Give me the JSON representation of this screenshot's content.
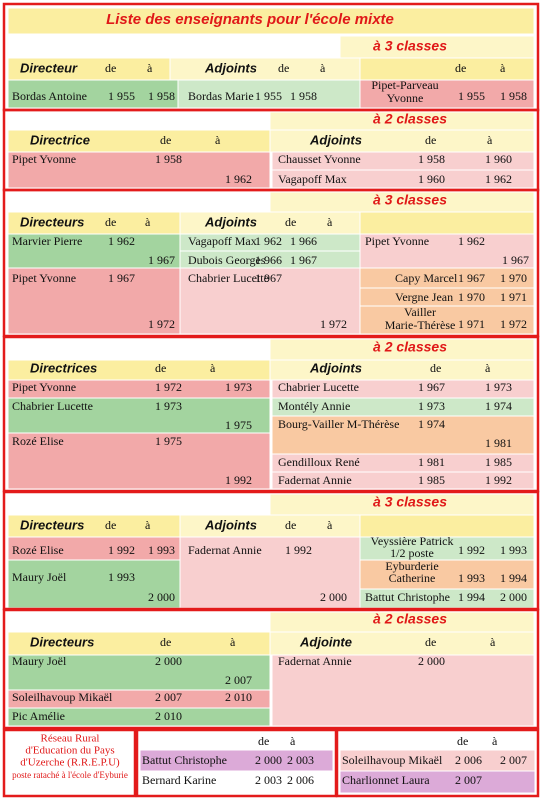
{
  "title": "Liste des enseignants pour l'école mixte",
  "sections": [
    {
      "heading": "à 3 classes",
      "texts": [
        "Directeur",
        "de",
        "à",
        "Adjoints",
        "de",
        "à",
        "de",
        "à",
        "Bordas Antoine",
        "1 955",
        "1 958",
        "Bordas Marie",
        "1 955",
        "1 958",
        "Pipet-Parveau",
        "Yvonne",
        "1 955",
        "1 958"
      ]
    },
    {
      "heading": "à 2 classes",
      "texts": [
        "Directrice",
        "de",
        "à",
        "Adjoints",
        "de",
        "à",
        "Pipet Yvonne",
        "1 958",
        "1 962",
        "Chausset Yvonne",
        "1 958",
        "1 960",
        "Vagapoff Max",
        "1 960",
        "1 962"
      ]
    },
    {
      "heading": "à 3 classes",
      "texts": [
        "Directeurs",
        "de",
        "à",
        "Adjoints",
        "de",
        "à",
        "Marvier Pierre",
        "1 962",
        "1 967",
        "Vagapoff Max",
        "1 962",
        "1 966",
        "Dubois Georges",
        "1 966",
        "1 967",
        "Pipet Yvonne",
        "1 962",
        "1 967",
        "Pipet Yvonne",
        "1 967",
        "1 972",
        "Chabrier Lucette",
        "1 967",
        "1 972",
        "Capy Marcel",
        "1 967",
        "1 970",
        "Vergne Jean",
        "1 970",
        "1 971",
        "Vailler",
        "Marie-Thérèse",
        "1 971",
        "1 972"
      ]
    },
    {
      "heading": "à 2 classes",
      "texts": [
        "Directrices",
        "de",
        "à",
        "Adjoints",
        "de",
        "à",
        "Pipet Yvonne",
        "1 972",
        "1 973",
        "Chabrier Lucette",
        "1 973",
        "1 975",
        "Rozé Elise",
        "1 975",
        "1 992",
        "Chabrier Lucette",
        "1 967",
        "1 973",
        "Montély Annie",
        "1 973",
        "1 974",
        "Bourg-Vailler M-Thérèse",
        "1 974",
        "1 981",
        "Gendilloux René",
        "1 981",
        "1 985",
        "Fadernat Annie",
        "1 985",
        "1 992"
      ]
    },
    {
      "heading": "à 3 classes",
      "texts": [
        "Directeurs",
        "de",
        "à",
        "Adjoints",
        "de",
        "à",
        "Rozé Elise",
        "1 992",
        "1 993",
        "Maury Joël",
        "1 993",
        "2 000",
        "Fadernat Annie",
        "1 992",
        "2 000",
        "Veyssière Patrick",
        "1/2 poste",
        "1 992",
        "1 993",
        "Eyburderie",
        "Catherine",
        "1 993",
        "1 994",
        "Battut Christophe",
        "1 994",
        "2 000"
      ]
    },
    {
      "heading": "à 2 classes",
      "texts": [
        "Directeurs",
        "de",
        "à",
        "Adjointe",
        "de",
        "à",
        "Maury Joël",
        "2 000",
        "2 007",
        "Soleilhavoup Mikaël",
        "2 007",
        "2 010",
        "Pic Amélie",
        "2 010",
        "Fadernat Annie",
        "2 000"
      ]
    }
  ],
  "footer": {
    "note": [
      "Réseau Rural",
      "d'Education du Pays",
      "d'Uzerche (R.R.E.P.U)",
      "poste rataché à l'école d'Eyburie"
    ],
    "left_table": [
      "de",
      "à",
      "Battut Christophe",
      "2 000",
      "2 003",
      "Bernard Karine",
      "2 003",
      "2 006"
    ],
    "right_table": [
      "de",
      "à",
      "Soleilhavoup Mikaël",
      "2 006",
      "2 007",
      "Charlionnet Laura",
      "2 007"
    ]
  }
}
